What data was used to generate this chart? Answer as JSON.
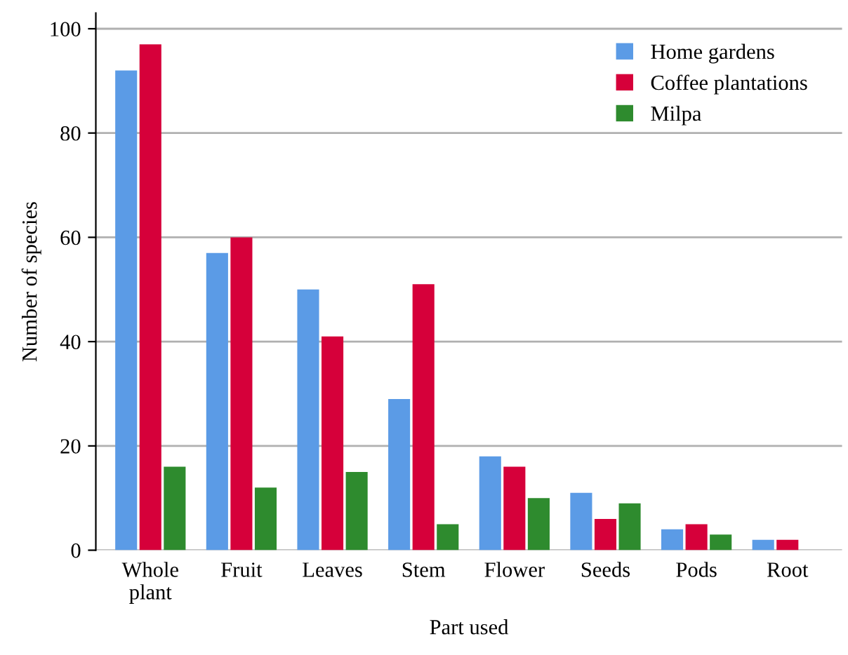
{
  "chart_data": {
    "type": "bar",
    "xlabel": "Part used",
    "ylabel": "Number of species",
    "categories": [
      "Whole\nplant",
      "Fruit",
      "Leaves",
      "Stem",
      "Flower",
      "Seeds",
      "Pods",
      "Root"
    ],
    "series": [
      {
        "name": "Home gardens",
        "color": "#5b9be6",
        "values": [
          92,
          57,
          50,
          29,
          18,
          11,
          4,
          2
        ]
      },
      {
        "name": "Coffee plantations",
        "color": "#d6003a",
        "values": [
          97,
          60,
          41,
          51,
          16,
          6,
          5,
          2
        ]
      },
      {
        "name": "Milpa",
        "color": "#2e8b2e",
        "values": [
          16,
          12,
          15,
          5,
          10,
          9,
          3,
          0
        ]
      }
    ],
    "ylim": [
      0,
      103
    ],
    "yticks": [
      0,
      20,
      40,
      60,
      80,
      100
    ],
    "grid": "y",
    "legend": "top right"
  }
}
